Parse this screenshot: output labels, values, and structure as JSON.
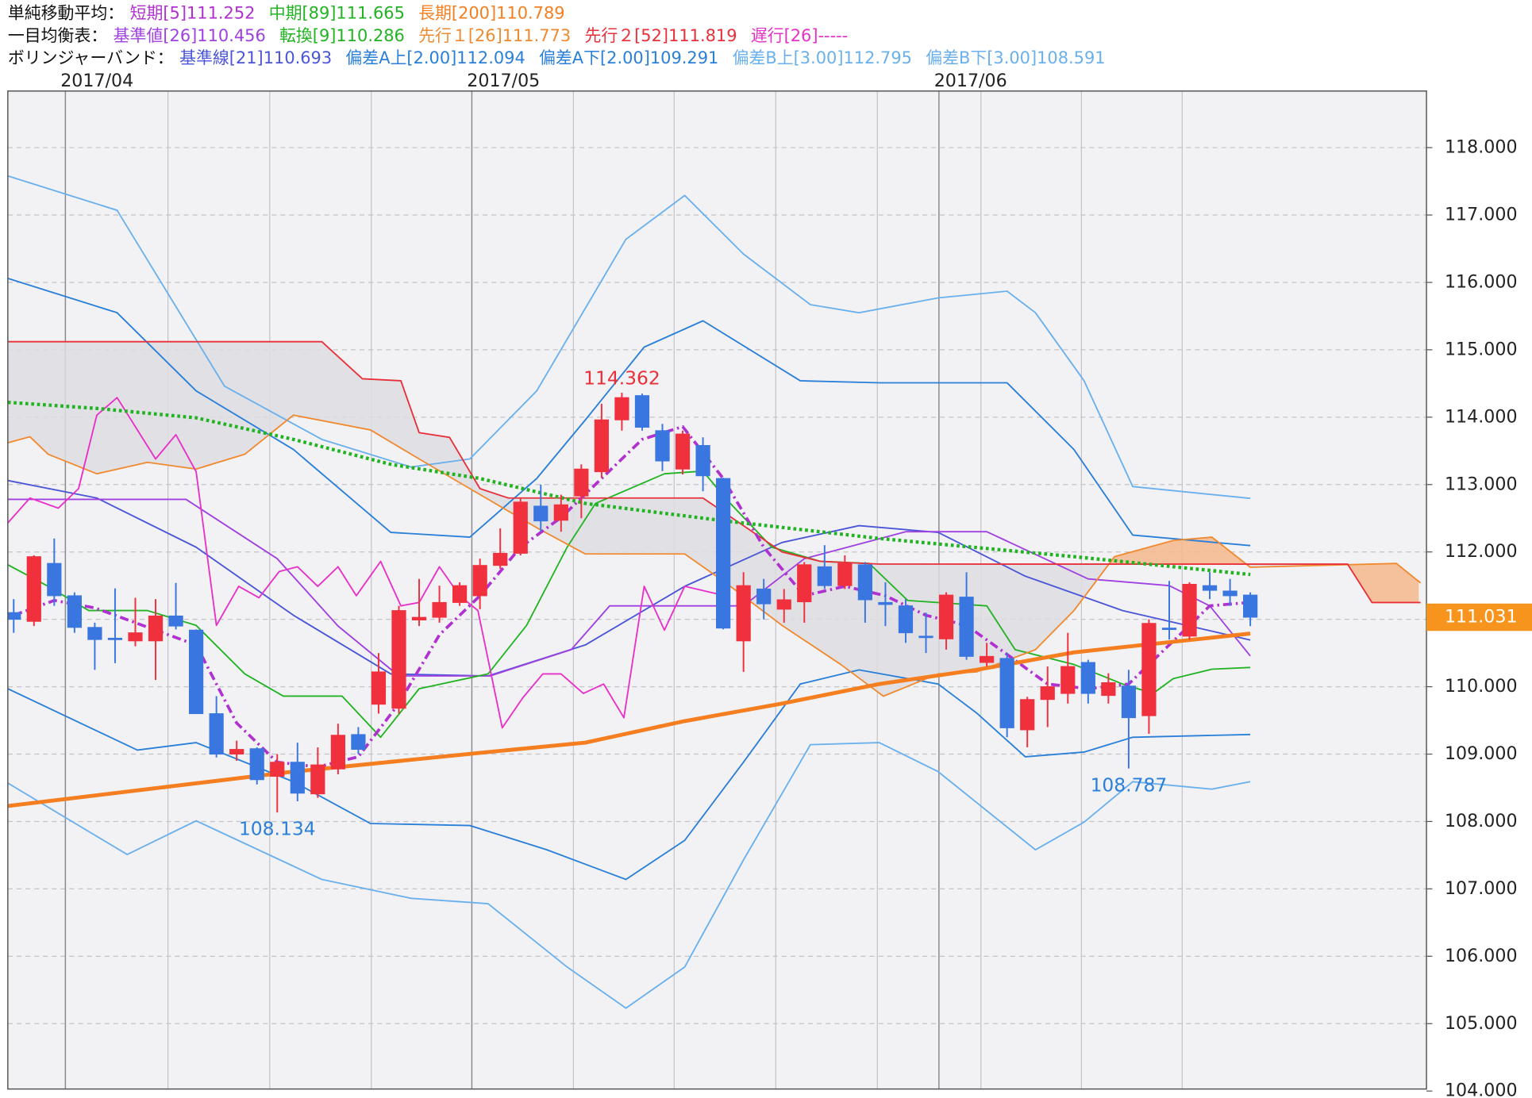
{
  "chart_data": {
    "type": "candlestick",
    "xlim": [
      -0.29,
      69.69
    ],
    "ylim": [
      104.03,
      118.84
    ],
    "yticks": [
      {
        "value": 104,
        "label": "104.000"
      },
      {
        "value": 105,
        "label": "105.000"
      },
      {
        "value": 106,
        "label": "106.000"
      },
      {
        "value": 107,
        "label": "107.000"
      },
      {
        "value": 108,
        "label": "108.000"
      },
      {
        "value": 109,
        "label": "109.000"
      },
      {
        "value": 110,
        "label": "110.000"
      },
      {
        "value": 111,
        "label": "111.000"
      },
      {
        "value": 112,
        "label": "112.000"
      },
      {
        "value": 113,
        "label": "113.000"
      },
      {
        "value": 114,
        "label": "114.000"
      },
      {
        "value": 115,
        "label": "115.000"
      },
      {
        "value": 116,
        "label": "116.000"
      },
      {
        "value": 117,
        "label": "117.000"
      },
      {
        "value": 118,
        "label": "118.000"
      }
    ],
    "xticks": [
      {
        "value": 2.55,
        "label": "2017/04"
      },
      {
        "value": 22.6,
        "label": "2017/05"
      },
      {
        "value": 45.64,
        "label": "2017/06"
      }
    ],
    "xgrid": [
      7.61,
      12.63,
      17.64,
      27.61,
      32.58,
      37.59,
      42.6,
      47.71,
      52.67,
      57.64
    ],
    "grid": true,
    "up_color": "#f0303c",
    "down_color": "#3a76e0",
    "cloud_colors": {
      "A_above": "#f6b88c",
      "B_above": "#dedee2"
    },
    "open": [
      111.1,
      110.97,
      111.83,
      111.35,
      110.88,
      110.72,
      110.68,
      110.68,
      111.05,
      110.84,
      109.6,
      109.0,
      109.08,
      108.67,
      108.88,
      108.41,
      108.78,
      109.29,
      109.74,
      109.68,
      110.99,
      111.03,
      111.25,
      111.35,
      111.8,
      111.98,
      112.68,
      112.47,
      112.83,
      113.19,
      113.96,
      114.32,
      113.8,
      113.23,
      113.58,
      113.09,
      110.68,
      111.45,
      111.15,
      111.26,
      111.78,
      111.5,
      111.81,
      111.25,
      111.2,
      110.75,
      110.71,
      111.33,
      110.36,
      110.42,
      109.36,
      109.81,
      109.9,
      110.36,
      109.87,
      110.01,
      109.57,
      110.87,
      110.75,
      111.5,
      111.42,
      111.36
    ],
    "high": [
      111.3,
      111.95,
      112.2,
      111.4,
      110.95,
      111.46,
      111.32,
      111.3,
      111.54,
      110.85,
      109.86,
      109.2,
      109.1,
      109.0,
      109.17,
      109.1,
      109.45,
      109.4,
      110.5,
      111.2,
      111.6,
      111.5,
      111.55,
      111.9,
      112.35,
      112.8,
      113.0,
      112.85,
      113.3,
      114.2,
      114.362,
      114.35,
      113.9,
      113.8,
      113.7,
      113.1,
      111.7,
      111.6,
      111.45,
      111.85,
      112.1,
      111.95,
      111.85,
      111.55,
      111.3,
      111.1,
      111.4,
      111.7,
      110.65,
      110.5,
      109.85,
      110.3,
      110.8,
      110.4,
      110.2,
      110.25,
      111.0,
      111.57,
      111.55,
      111.7,
      111.6,
      111.4
    ],
    "low": [
      110.8,
      110.9,
      111.2,
      110.8,
      110.25,
      110.35,
      110.6,
      110.1,
      110.85,
      109.6,
      108.95,
      108.9,
      108.55,
      108.134,
      108.3,
      108.35,
      108.7,
      109.0,
      109.6,
      109.6,
      110.9,
      110.95,
      111.2,
      111.15,
      111.75,
      111.95,
      112.3,
      112.3,
      112.5,
      113.1,
      113.8,
      113.8,
      113.2,
      113.15,
      112.9,
      110.85,
      110.22,
      111.0,
      110.95,
      110.95,
      111.45,
      111.45,
      110.95,
      110.9,
      110.65,
      110.5,
      110.55,
      110.4,
      110.3,
      109.25,
      109.1,
      109.4,
      109.75,
      109.75,
      109.75,
      108.787,
      109.3,
      110.7,
      110.7,
      111.3,
      111.2,
      110.9
    ],
    "close": [
      111.0,
      111.93,
      111.35,
      110.88,
      110.7,
      110.7,
      110.8,
      111.05,
      110.9,
      109.6,
      109.0,
      109.07,
      108.62,
      108.88,
      108.42,
      108.84,
      109.28,
      109.07,
      110.22,
      111.13,
      111.03,
      111.25,
      111.5,
      111.8,
      111.98,
      112.74,
      112.46,
      112.7,
      113.23,
      113.96,
      114.29,
      113.85,
      113.35,
      113.75,
      113.13,
      110.87,
      111.5,
      111.23,
      111.29,
      111.81,
      111.5,
      111.83,
      111.29,
      111.22,
      110.8,
      110.73,
      111.36,
      110.45,
      110.45,
      109.39,
      109.81,
      110.0,
      110.3,
      109.9,
      110.06,
      109.54,
      110.94,
      110.85,
      111.52,
      111.43,
      111.35,
      111.031
    ],
    "last_price": {
      "value": 111.031,
      "label": "111.031"
    },
    "annotations": [
      {
        "x": 30,
        "value": 114.362,
        "color": "#e8303a",
        "position": "above"
      },
      {
        "x": 13,
        "value": 108.134,
        "color": "#2a7fd8",
        "position": "below"
      },
      {
        "x": 55,
        "value": 108.787,
        "color": "#2a7fd8",
        "position": "below"
      }
    ],
    "indicators": [
      {
        "title": "単純移動平均：",
        "series": [
          {
            "name": "短期[5]111.252",
            "color": "#b030d0",
            "style": "dashdot",
            "x": [
              0,
              2,
              4,
              7,
              9,
              11,
              13,
              15,
              17,
              19,
              21,
              23,
              25,
              27,
              29,
              31,
              33,
              35,
              37,
              39,
              41,
              43,
              45,
              47,
              49,
              51,
              53,
              55,
              57,
              59,
              61
            ],
            "values": [
              111.06,
              111.28,
              111.17,
              110.84,
              110.62,
              109.46,
              108.88,
              108.81,
              108.96,
              109.75,
              110.77,
              111.35,
              112.07,
              112.51,
              113.09,
              113.67,
              113.86,
              113.09,
              112.07,
              111.35,
              111.49,
              111.35,
              111.06,
              110.91,
              110.48,
              110.04,
              109.97,
              110.04,
              110.62,
              111.2,
              111.252
            ]
          },
          {
            "name": "中期[89]111.665",
            "color": "#22b322",
            "style": "dotted",
            "x": [
              -0.29,
              4.1,
              9,
              13.8,
              18.6,
              23,
              28.2,
              35.1,
              42.7,
              52.3,
              61
            ],
            "values": [
              114.22,
              114.13,
              113.99,
              113.67,
              113.3,
              113.09,
              112.72,
              112.46,
              112.2,
              111.93,
              111.665
            ]
          },
          {
            "name": "長期[200]110.789",
            "color": "#f57f20",
            "style": "thick",
            "x": [
              -0.29,
              13.8,
              23.4,
              28.2,
              33.1,
              37.9,
              42.7,
              47.5,
              52.3,
              61
            ],
            "values": [
              108.23,
              108.74,
              109.03,
              109.17,
              109.49,
              109.75,
              110.04,
              110.25,
              110.51,
              110.789
            ]
          }
        ]
      },
      {
        "title": "一目均衡表：",
        "series": [
          {
            "name": "基準値[26]110.456",
            "color": "#a040e0",
            "style": "solid",
            "x": [
              -0.29,
              8.5,
              13,
              16,
              19,
              23.5,
              27.5,
              29.4,
              36,
              39,
              44,
              48,
              53,
              57,
              59,
              61
            ],
            "values": [
              112.78,
              112.78,
              111.9,
              110.9,
              110.16,
              110.16,
              110.55,
              111.2,
              111.2,
              111.9,
              112.3,
              112.3,
              111.6,
              111.5,
              111.2,
              110.456
            ]
          },
          {
            "name": "転換[9]110.286",
            "color": "#22b322",
            "style": "solid",
            "x": [
              -0.29,
              1.7,
              3.7,
              6.6,
              9,
              11.4,
              13.3,
              16.2,
              18.1,
              20,
              23.4,
              25.3,
              27.3,
              28.7,
              32.1,
              34,
              35.1,
              37.4,
              39.8,
              42.2,
              44.1,
              48,
              49.4,
              52.3,
              54.7,
              56.2,
              57.2,
              59.1,
              61
            ],
            "values": [
              111.81,
              111.49,
              111.13,
              111.13,
              110.91,
              110.19,
              109.86,
              109.86,
              109.25,
              109.97,
              110.19,
              110.91,
              112.07,
              112.72,
              113.16,
              113.2,
              112.8,
              112.07,
              111.86,
              111.83,
              111.28,
              111.2,
              110.55,
              110.33,
              110.04,
              109.9,
              110.12,
              110.26,
              110.286
            ]
          },
          {
            "name": "先行１[26]111.773",
            "color": "#f08a30",
            "style": "solid",
            "span": "A",
            "x": [
              -0.29,
              0.8,
              1.7,
              4.1,
              6.6,
              9,
              11.4,
              13.8,
              17.6,
              20,
              22.5,
              25.8,
              28.2,
              33.1,
              35,
              37.9,
              40.8,
              42.9,
              45.6,
              47.5,
              50.4,
              52.3,
              54.3,
              57.2,
              59.1,
              61,
              68.2,
              69.4
            ],
            "values": [
              113.62,
              113.71,
              113.45,
              113.16,
              113.33,
              113.23,
              113.45,
              114.03,
              113.81,
              113.38,
              112.94,
              112.36,
              111.97,
              111.97,
              111.57,
              110.91,
              110.33,
              109.86,
              110.19,
              110.22,
              110.55,
              111.13,
              111.93,
              112.17,
              112.22,
              111.773,
              111.83,
              111.54
            ]
          },
          {
            "name": "先行２[52]111.819",
            "color": "#e8303a",
            "style": "solid",
            "span": "B",
            "x": [
              -0.29,
              15.2,
              17.2,
              19.1,
              20,
              21.5,
              23,
              24.4,
              34,
              37.9,
              39.8,
              42.7,
              61,
              65.8,
              67,
              69.4
            ],
            "values": [
              115.12,
              115.12,
              114.57,
              114.54,
              113.77,
              113.7,
              112.94,
              112.8,
              112.8,
              112.0,
              111.86,
              111.82,
              111.819,
              111.819,
              111.25,
              111.25
            ]
          },
          {
            "name": "遅行[26]-----",
            "color": "#e830c8",
            "style": "solid",
            "x": [
              -0.29,
              0.8,
              2.2,
              3.2,
              4.1,
              5.1,
              7,
              8,
              9,
              10,
              11.1,
              12.1,
              13.1,
              14,
              15,
              16,
              16.9,
              18.1,
              19.1,
              20,
              21,
              22,
              22.9,
              24.1,
              25.1,
              26.1,
              27,
              28.1,
              29.1,
              30.1,
              31.1,
              32.1,
              33.1,
              34.1,
              35.1
            ],
            "values": [
              112.43,
              112.8,
              112.65,
              112.94,
              114.03,
              114.29,
              113.38,
              113.74,
              113.19,
              110.91,
              111.49,
              111.32,
              111.71,
              111.78,
              111.49,
              111.78,
              111.35,
              111.86,
              111.2,
              111.25,
              111.78,
              111.35,
              111.13,
              109.39,
              109.83,
              110.19,
              110.19,
              109.9,
              110.04,
              109.54,
              111.49,
              110.84,
              111.49,
              111.42,
              111.35
            ]
          }
        ]
      },
      {
        "title": "ボリンジャーバンド：",
        "series": [
          {
            "name": "基準線[21]110.693",
            "color": "#4a55d8",
            "style": "solid",
            "x": [
              -0.29,
              4.1,
              9,
              13.8,
              18.6,
              23.4,
              28.2,
              33.1,
              37.9,
              41.7,
              45.6,
              49.9,
              54.7,
              61
            ],
            "values": [
              113.06,
              112.8,
              112.07,
              111.06,
              110.19,
              110.16,
              110.62,
              111.49,
              112.14,
              112.39,
              112.29,
              111.64,
              111.13,
              110.693
            ]
          },
          {
            "name": "偏差A上[2.00]112.094",
            "color": "#2a7fd8",
            "style": "solid",
            "x": [
              -0.29,
              5.1,
              9,
              13.8,
              18.6,
              22.5,
              25.8,
              28.2,
              31.1,
              34,
              38.8,
              42.7,
              49,
              52.3,
              55.2,
              61
            ],
            "values": [
              116.06,
              115.55,
              114.39,
              113.52,
              112.29,
              112.22,
              113.09,
              113.96,
              115.04,
              115.43,
              114.54,
              114.51,
              114.51,
              113.52,
              112.25,
              112.094
            ]
          },
          {
            "name": "偏差A下[2.00]109.291",
            "color": "#2a7fd8",
            "style": "solid",
            "x": [
              -0.29,
              6.1,
              9,
              13.8,
              17.6,
              22.5,
              26.3,
              30.2,
              33.1,
              36,
              38.8,
              41.7,
              45.6,
              47.5,
              49.9,
              52.8,
              55.2,
              61
            ],
            "values": [
              109.97,
              109.06,
              109.17,
              108.59,
              107.97,
              107.94,
              107.58,
              107.14,
              107.72,
              108.88,
              110.04,
              110.25,
              110.04,
              109.61,
              108.96,
              109.03,
              109.25,
              109.291
            ]
          },
          {
            "name": "偏差B上[3.00]112.795",
            "color": "#6ab0ec",
            "style": "solid",
            "x": [
              -0.29,
              5.1,
              10.4,
              15.2,
              19.6,
              22.5,
              25.8,
              30.2,
              33.1,
              36,
              39.3,
              41.7,
              45.6,
              49,
              50.4,
              52.8,
              55.2,
              61
            ],
            "values": [
              117.58,
              117.07,
              114.46,
              113.67,
              113.26,
              113.38,
              114.39,
              116.64,
              117.29,
              116.42,
              115.67,
              115.55,
              115.77,
              115.87,
              115.55,
              114.54,
              112.97,
              112.795
            ]
          },
          {
            "name": "偏差B下[3.00]108.591",
            "color": "#6ab0ec",
            "style": "solid",
            "x": [
              -0.29,
              5.6,
              9,
              15.2,
              19.6,
              23.4,
              27.3,
              30.2,
              33.1,
              36,
              39.3,
              42.7,
              45.6,
              48,
              50.4,
              52.8,
              55.2,
              59.1,
              61
            ],
            "values": [
              108.57,
              107.51,
              108.01,
              107.14,
              106.86,
              106.78,
              105.84,
              105.23,
              105.84,
              107.43,
              109.14,
              109.17,
              108.74,
              108.16,
              107.58,
              107.99,
              108.59,
              108.48,
              108.591
            ]
          }
        ]
      }
    ]
  }
}
